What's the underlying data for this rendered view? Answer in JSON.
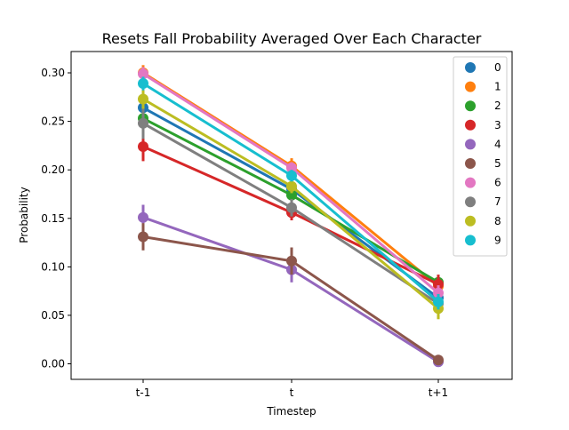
{
  "chart_data": {
    "type": "line",
    "title": "Resets Fall Probability Averaged Over Each Character",
    "xlabel": "Timestep",
    "ylabel": "Probability",
    "categories": [
      "t-1",
      "t",
      "t+1"
    ],
    "ylim": [
      -0.016,
      0.322
    ],
    "yticks": [
      0.0,
      0.05,
      0.1,
      0.15,
      0.2,
      0.25,
      0.3
    ],
    "ytick_labels": [
      "0.00",
      "0.05",
      "0.10",
      "0.15",
      "0.20",
      "0.25",
      "0.30"
    ],
    "grid": false,
    "legend_position": "top-right",
    "series": [
      {
        "name": "0",
        "color": "#1f77b4",
        "values": [
          0.264,
          0.18,
          0.068
        ],
        "err": [
          0.008,
          0.006,
          0.008
        ]
      },
      {
        "name": "1",
        "color": "#ff7f0e",
        "values": [
          0.3,
          0.204,
          0.08
        ],
        "err": [
          0.008,
          0.008,
          0.008
        ]
      },
      {
        "name": "2",
        "color": "#2ca02c",
        "values": [
          0.253,
          0.174,
          0.084
        ],
        "err": [
          0.008,
          0.006,
          0.006
        ]
      },
      {
        "name": "3",
        "color": "#d62728",
        "values": [
          0.224,
          0.156,
          0.082
        ],
        "err": [
          0.015,
          0.008,
          0.01
        ]
      },
      {
        "name": "4",
        "color": "#9467bd",
        "values": [
          0.151,
          0.097,
          0.002
        ],
        "err": [
          0.013,
          0.013,
          0.002
        ]
      },
      {
        "name": "5",
        "color": "#8c564b",
        "values": [
          0.131,
          0.106,
          0.004
        ],
        "err": [
          0.014,
          0.014,
          0.002
        ]
      },
      {
        "name": "6",
        "color": "#e377c2",
        "values": [
          0.299,
          0.202,
          0.073
        ],
        "err": [
          0.007,
          0.006,
          0.008
        ]
      },
      {
        "name": "7",
        "color": "#7f7f7f",
        "values": [
          0.248,
          0.161,
          0.062
        ],
        "err": [
          0.016,
          0.009,
          0.008
        ]
      },
      {
        "name": "8",
        "color": "#bcbd22",
        "values": [
          0.273,
          0.183,
          0.057
        ],
        "err": [
          0.01,
          0.007,
          0.011
        ]
      },
      {
        "name": "9",
        "color": "#17becf",
        "values": [
          0.289,
          0.194,
          0.064
        ],
        "err": [
          0.007,
          0.006,
          0.008
        ]
      }
    ]
  }
}
